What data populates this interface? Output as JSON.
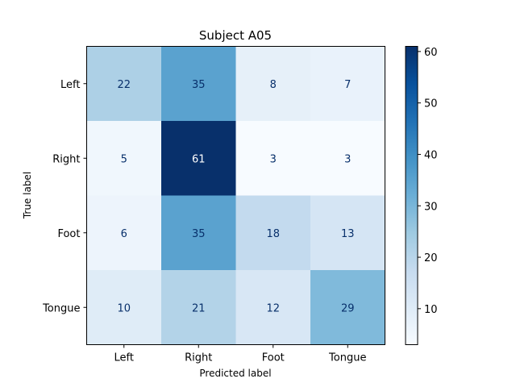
{
  "chart_data": {
    "type": "heatmap",
    "title": "Subject A05",
    "xlabel": "Predicted label",
    "ylabel": "True label",
    "x_categories": [
      "Left",
      "Right",
      "Foot",
      "Tongue"
    ],
    "y_categories": [
      "Left",
      "Right",
      "Foot",
      "Tongue"
    ],
    "values": [
      [
        22,
        35,
        8,
        7
      ],
      [
        5,
        61,
        3,
        3
      ],
      [
        6,
        35,
        18,
        13
      ],
      [
        10,
        21,
        12,
        29
      ]
    ],
    "colormap": "Blues",
    "color_range": [
      3,
      61
    ],
    "colorbar_ticks": [
      10,
      20,
      30,
      40,
      50,
      60
    ]
  }
}
